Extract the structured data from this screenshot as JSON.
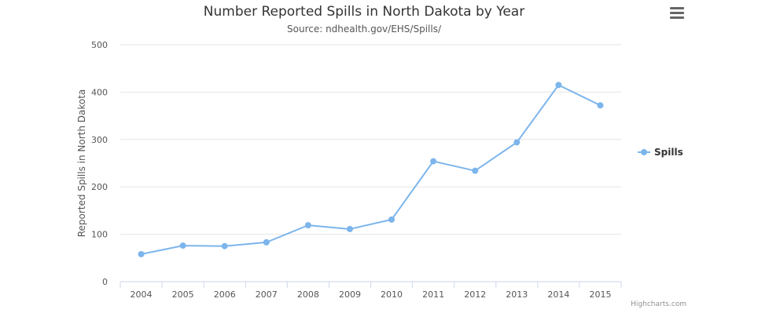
{
  "chart_data": {
    "type": "line",
    "title": "Number Reported Spills in North Dakota by Year",
    "subtitle": "Source: ndhealth.gov/EHS/Spills/",
    "xlabel": "",
    "ylabel": "Reported Spills in North Dakota",
    "categories": [
      "2004",
      "2005",
      "2006",
      "2007",
      "2008",
      "2009",
      "2010",
      "2011",
      "2012",
      "2013",
      "2014",
      "2015"
    ],
    "series": [
      {
        "name": "Spills",
        "color": "#7cb5ec",
        "values": [
          58,
          76,
          75,
          83,
          119,
          111,
          131,
          254,
          234,
          294,
          415,
          372
        ]
      }
    ],
    "ylim": [
      0,
      500
    ],
    "yticks": [
      0,
      100,
      200,
      300,
      400,
      500
    ],
    "grid": true,
    "legend": "right"
  },
  "credits": "Highcharts.com",
  "menu_icon": "hamburger-menu-icon"
}
